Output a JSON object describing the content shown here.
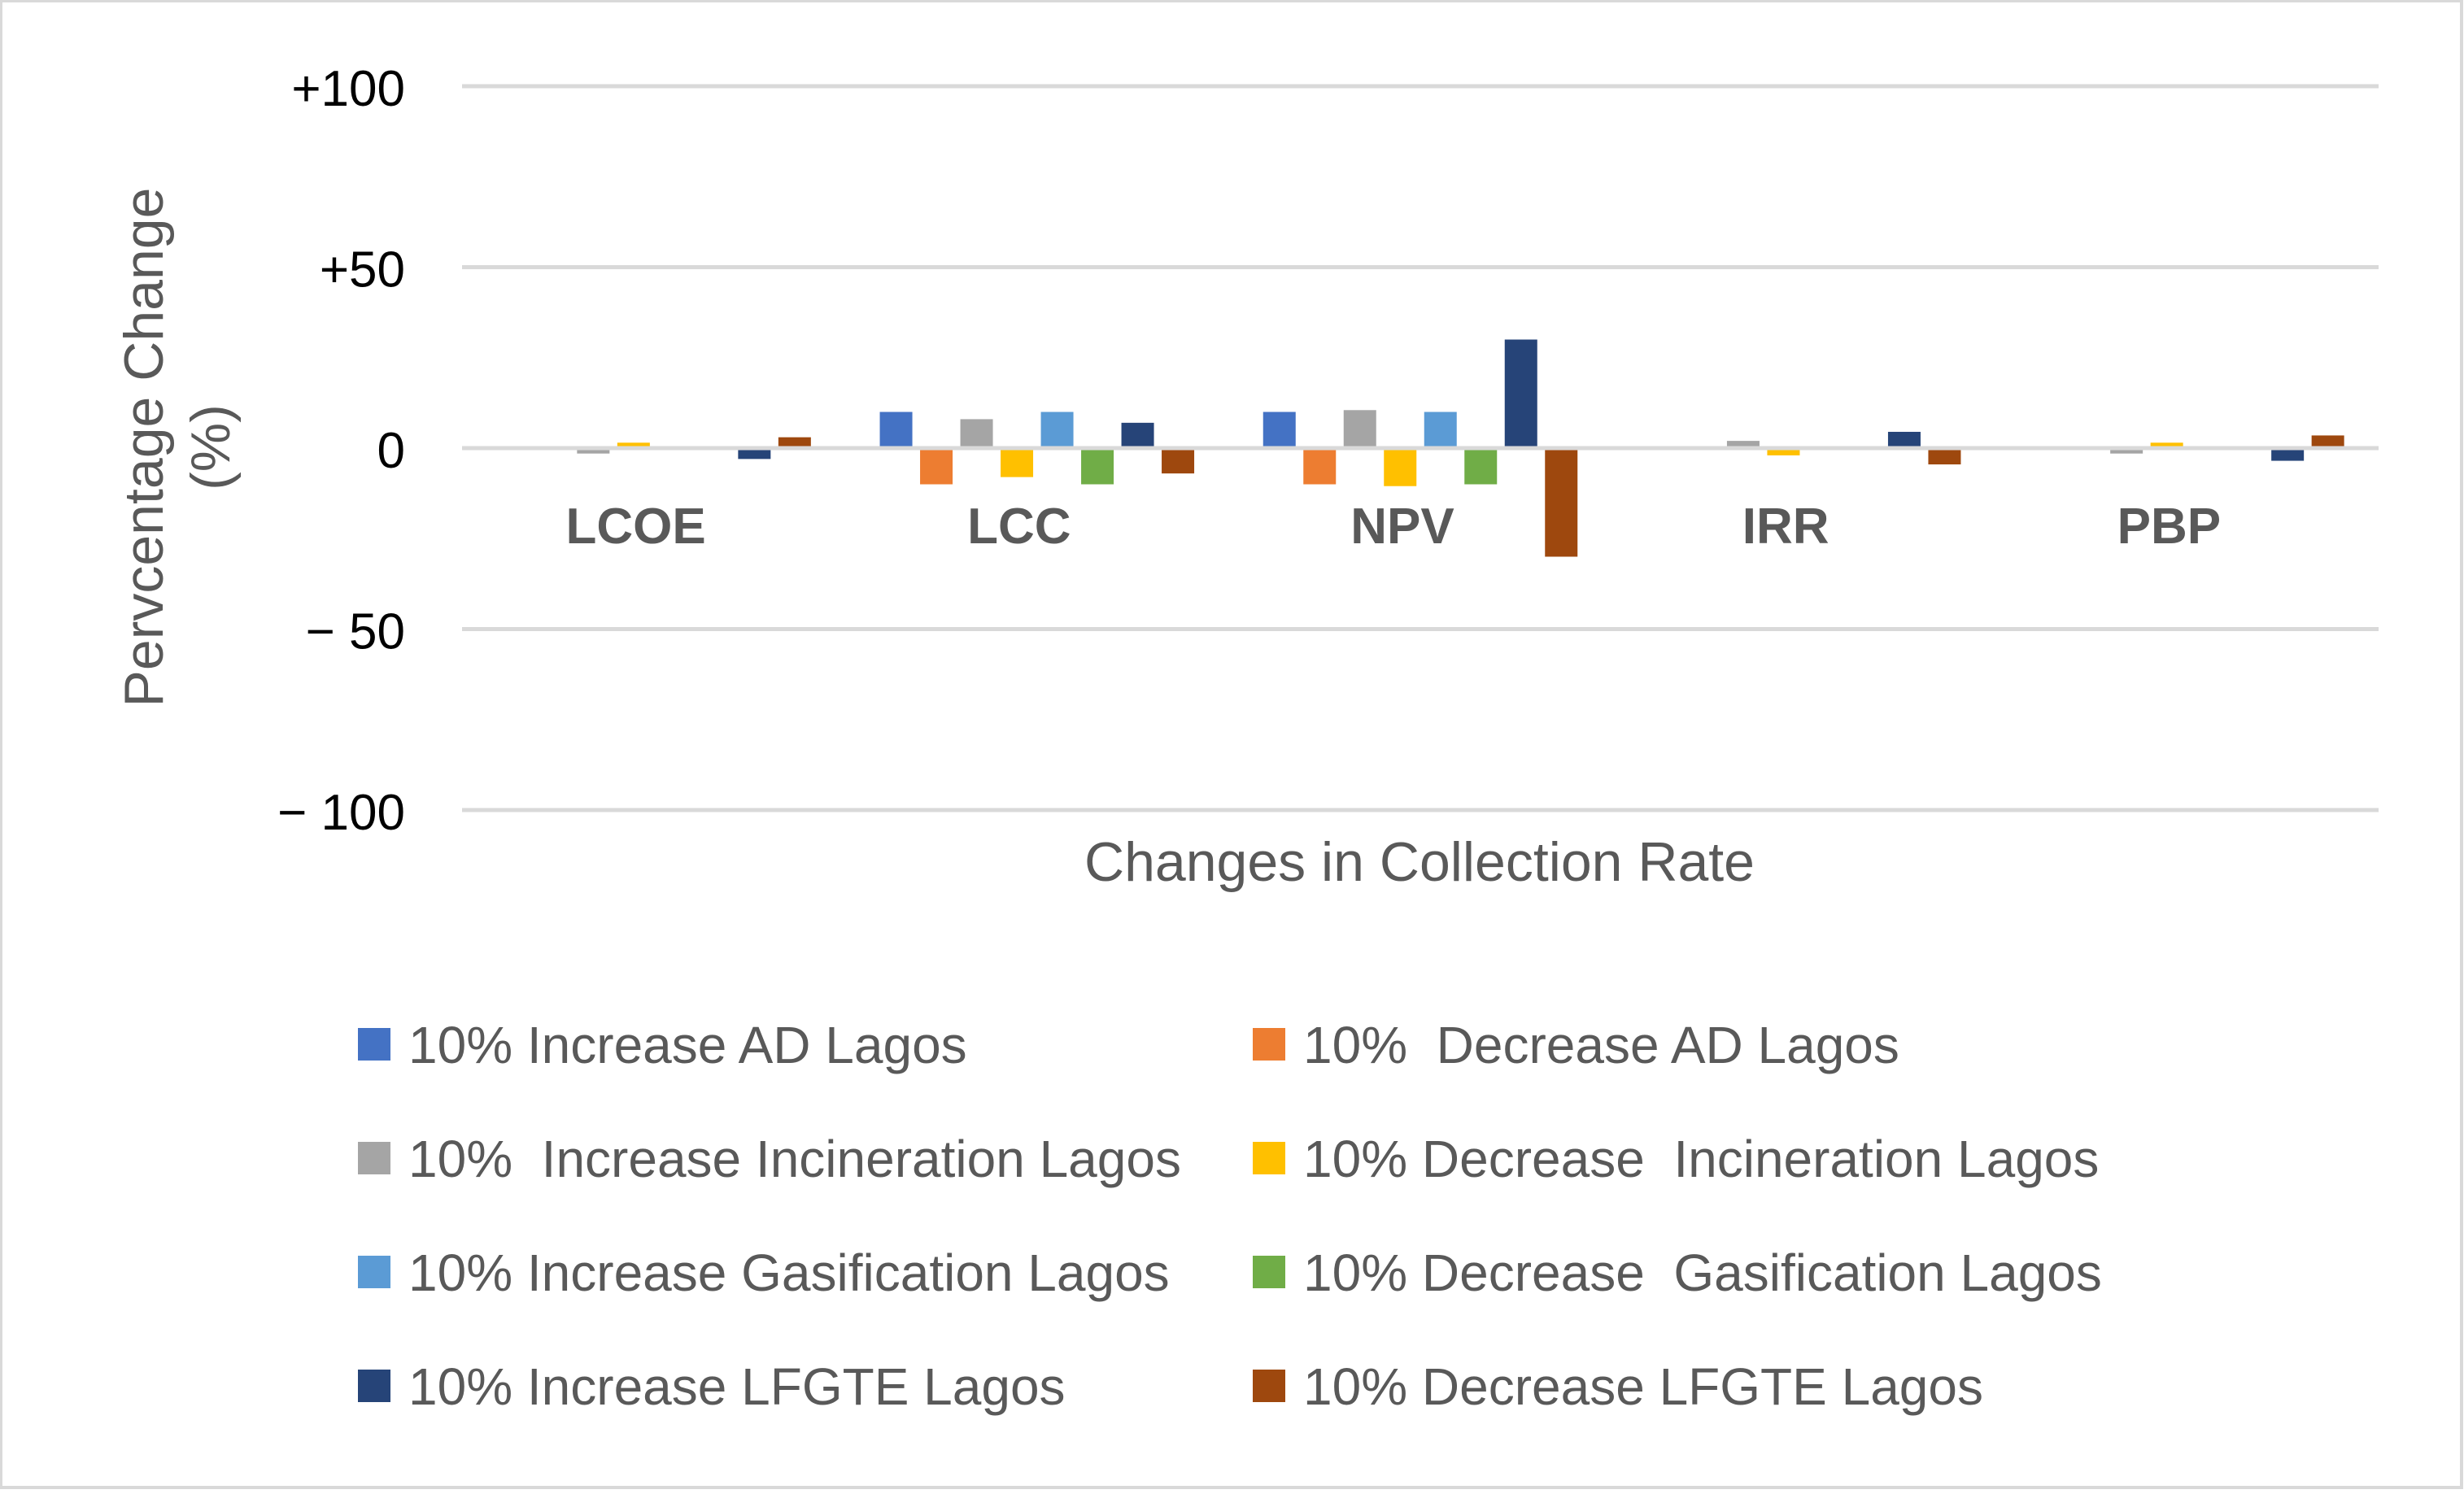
{
  "chart_data": {
    "type": "bar",
    "title": "",
    "xlabel": "Changes in Collection Rate",
    "ylabel_line1": "Pervcentage Change",
    "ylabel_line2": "(%)",
    "ylim": [
      -100,
      100
    ],
    "yticks": [
      100,
      50,
      0,
      -50,
      -100
    ],
    "ytick_labels": [
      "+100",
      "+50",
      "0",
      "− 50",
      "− 100"
    ],
    "categories": [
      "LCOE",
      "LCC",
      "NPV",
      "IRR",
      "PBP"
    ],
    "series": [
      {
        "name": "10% Increase AD Lagos",
        "color": "#4472C4",
        "values": [
          0,
          10,
          10,
          0,
          0
        ]
      },
      {
        "name": "10%  Decrease AD Lagos",
        "color": "#ED7D31",
        "values": [
          0,
          -10,
          -10,
          0,
          0
        ]
      },
      {
        "name": "10%  Increase Incineration Lagos",
        "color": "#A5A5A5",
        "values": [
          -1.5,
          8,
          10.5,
          2,
          -1.5
        ]
      },
      {
        "name": "10% Decrease  Incineration Lagos",
        "color": "#FFC000",
        "values": [
          1.5,
          -8,
          -10.5,
          -2,
          1.5
        ]
      },
      {
        "name": "10% Increase Gasification Lagos",
        "color": "#5B9BD5",
        "values": [
          0,
          10,
          10,
          0,
          0
        ]
      },
      {
        "name": "10% Decrease  Gasification Lagos",
        "color": "#70AD47",
        "values": [
          0,
          -10,
          -10,
          0,
          0
        ]
      },
      {
        "name": "10% Increase LFGTE Lagos",
        "color": "#264478",
        "values": [
          -3,
          7,
          30,
          4.5,
          -3.5
        ]
      },
      {
        "name": "10% Decrease LFGTE Lagos",
        "color": "#9E480E",
        "values": [
          3,
          -7,
          -30,
          -4.5,
          3.5
        ]
      }
    ],
    "grid": true,
    "legend_position": "bottom"
  }
}
